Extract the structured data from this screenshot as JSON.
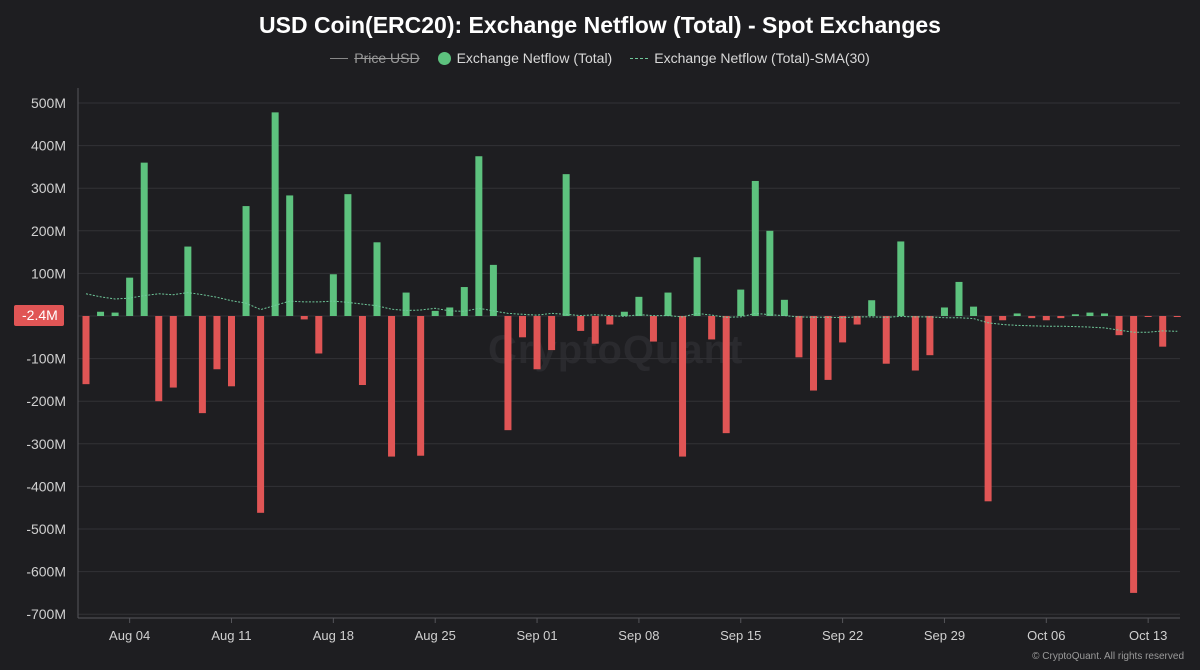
{
  "title": "USD Coin(ERC20): Exchange Netflow (Total) - Spot Exchanges",
  "legend": {
    "price": "Price USD",
    "netflow": "Exchange Netflow (Total)",
    "sma": "Exchange Netflow (Total)-SMA(30)"
  },
  "watermark": "CryptoQuant",
  "credit": "© CryptoQuant. All rights reserved",
  "current_value_tag": "-2.4M",
  "colors": {
    "positive": "#5dc27e",
    "negative": "#e05555",
    "sma": "#6fc89a",
    "background": "#1e1e21",
    "grid": "#323236"
  },
  "chart_data": {
    "type": "bar",
    "y_unit": "USD",
    "ylim": [
      -700000000,
      520000000
    ],
    "y_ticks": [
      {
        "value": 500000000,
        "label": "500M"
      },
      {
        "value": 400000000,
        "label": "400M"
      },
      {
        "value": 300000000,
        "label": "300M"
      },
      {
        "value": 200000000,
        "label": "200M"
      },
      {
        "value": 100000000,
        "label": "100M"
      },
      {
        "value": -100000000,
        "label": "-100M"
      },
      {
        "value": -200000000,
        "label": "-200M"
      },
      {
        "value": -300000000,
        "label": "-300M"
      },
      {
        "value": -400000000,
        "label": "-400M"
      },
      {
        "value": -500000000,
        "label": "-500M"
      },
      {
        "value": -600000000,
        "label": "-600M"
      },
      {
        "value": -700000000,
        "label": "-700M"
      }
    ],
    "x_ticks": [
      {
        "date": "2024-08-04",
        "label": "Aug 04"
      },
      {
        "date": "2024-08-11",
        "label": "Aug 11"
      },
      {
        "date": "2024-08-18",
        "label": "Aug 18"
      },
      {
        "date": "2024-08-25",
        "label": "Aug 25"
      },
      {
        "date": "2024-09-01",
        "label": "Sep 01"
      },
      {
        "date": "2024-09-08",
        "label": "Sep 08"
      },
      {
        "date": "2024-09-15",
        "label": "Sep 15"
      },
      {
        "date": "2024-09-22",
        "label": "Sep 22"
      },
      {
        "date": "2024-09-29",
        "label": "Sep 29"
      },
      {
        "date": "2024-10-06",
        "label": "Oct 06"
      },
      {
        "date": "2024-10-13",
        "label": "Oct 13"
      }
    ],
    "x": [
      "2024-08-01",
      "2024-08-02",
      "2024-08-03",
      "2024-08-04",
      "2024-08-05",
      "2024-08-06",
      "2024-08-07",
      "2024-08-08",
      "2024-08-09",
      "2024-08-10",
      "2024-08-11",
      "2024-08-12",
      "2024-08-13",
      "2024-08-14",
      "2024-08-15",
      "2024-08-16",
      "2024-08-17",
      "2024-08-18",
      "2024-08-19",
      "2024-08-20",
      "2024-08-21",
      "2024-08-22",
      "2024-08-23",
      "2024-08-24",
      "2024-08-25",
      "2024-08-26",
      "2024-08-27",
      "2024-08-28",
      "2024-08-29",
      "2024-08-30",
      "2024-08-31",
      "2024-09-01",
      "2024-09-02",
      "2024-09-03",
      "2024-09-04",
      "2024-09-05",
      "2024-09-06",
      "2024-09-07",
      "2024-09-08",
      "2024-09-09",
      "2024-09-10",
      "2024-09-11",
      "2024-09-12",
      "2024-09-13",
      "2024-09-14",
      "2024-09-15",
      "2024-09-16",
      "2024-09-17",
      "2024-09-18",
      "2024-09-19",
      "2024-09-20",
      "2024-09-21",
      "2024-09-22",
      "2024-09-23",
      "2024-09-24",
      "2024-09-25",
      "2024-09-26",
      "2024-09-27",
      "2024-09-28",
      "2024-09-29",
      "2024-09-30",
      "2024-10-01",
      "2024-10-02",
      "2024-10-03",
      "2024-10-04",
      "2024-10-05",
      "2024-10-06",
      "2024-10-07",
      "2024-10-08",
      "2024-10-09",
      "2024-10-10",
      "2024-10-11",
      "2024-10-12",
      "2024-10-13",
      "2024-10-14",
      "2024-10-15"
    ],
    "series": [
      {
        "name": "Exchange Netflow (Total)",
        "values": [
          -160000000,
          10000000,
          8000000,
          90000000,
          360000000,
          -200000000,
          -168000000,
          163000000,
          -228000000,
          -125000000,
          -165000000,
          258000000,
          -462000000,
          478000000,
          283000000,
          -8000000,
          -88000000,
          98000000,
          286000000,
          -162000000,
          173000000,
          -330000000,
          55000000,
          -328000000,
          12000000,
          20000000,
          68000000,
          375000000,
          120000000,
          -268000000,
          -50000000,
          -125000000,
          -80000000,
          333000000,
          -35000000,
          -65000000,
          -20000000,
          10000000,
          45000000,
          -60000000,
          55000000,
          -330000000,
          138000000,
          -55000000,
          -275000000,
          62000000,
          317000000,
          200000000,
          38000000,
          -97000000,
          -175000000,
          -150000000,
          -62000000,
          -20000000,
          37000000,
          -112000000,
          175000000,
          -128000000,
          -92000000,
          20000000,
          80000000,
          22000000,
          -435000000,
          -10000000,
          6000000,
          -5000000,
          -10000000,
          -5000000,
          4000000,
          8000000,
          6000000,
          -45000000,
          -650000000,
          -2000000,
          -72000000,
          -2400000
        ]
      },
      {
        "name": "Exchange Netflow (Total)-SMA(30)",
        "values": [
          52000000,
          45000000,
          40000000,
          42000000,
          48000000,
          52000000,
          50000000,
          55000000,
          50000000,
          44000000,
          36000000,
          30000000,
          15000000,
          25000000,
          35000000,
          33000000,
          33000000,
          35000000,
          32000000,
          28000000,
          24000000,
          16000000,
          13000000,
          14000000,
          18000000,
          12000000,
          11000000,
          18000000,
          12000000,
          6000000,
          4000000,
          2000000,
          6000000,
          4000000,
          1000000,
          3000000,
          1000000,
          -1000000,
          3000000,
          1000000,
          1000000,
          -2000000,
          6000000,
          2000000,
          -3000000,
          -2000000,
          6000000,
          3000000,
          1000000,
          -2000000,
          -3000000,
          -3000000,
          -4000000,
          -2000000,
          -2000000,
          -3000000,
          -1000000,
          -2000000,
          -2000000,
          -4000000,
          -4000000,
          -6000000,
          -16000000,
          -20000000,
          -22000000,
          -23000000,
          -24000000,
          -24000000,
          -25000000,
          -26000000,
          -28000000,
          -33000000,
          -38000000,
          -38000000,
          -35000000,
          -36000000
        ]
      }
    ],
    "grid": true,
    "legend_position": "top-center"
  }
}
